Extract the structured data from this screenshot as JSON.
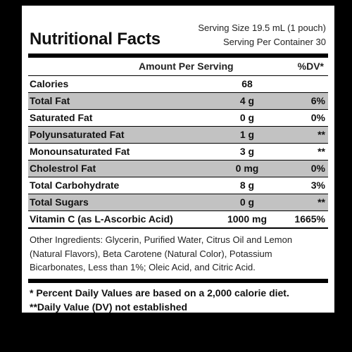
{
  "label": {
    "title": "Nutritional Facts",
    "serving_size": "Serving Size 19.5 mL (1 pouch)",
    "servings_per_container": "Serving Per Container 30"
  },
  "table": {
    "header": {
      "amount": "Amount Per Serving",
      "dv": "%DV*"
    },
    "rows": [
      {
        "name": "Calories",
        "amount": "68",
        "dv": "",
        "shaded": false
      },
      {
        "name": "Total Fat",
        "amount": "4 g",
        "dv": "6%",
        "shaded": true
      },
      {
        "name": "Saturated Fat",
        "amount": "0 g",
        "dv": "0%",
        "shaded": false
      },
      {
        "name": "Polyunsaturated Fat",
        "amount": "1 g",
        "dv": "**",
        "shaded": true
      },
      {
        "name": "Monounsaturated Fat",
        "amount": "3 g",
        "dv": "**",
        "shaded": false
      },
      {
        "name": "Cholestrol Fat",
        "amount": "0 mg",
        "dv": "0%",
        "shaded": true
      },
      {
        "name": "Total Carbohydrate",
        "amount": "8 g",
        "dv": "3%",
        "shaded": false
      },
      {
        "name": "Total Sugars",
        "amount": "0 g",
        "dv": "**",
        "shaded": true
      },
      {
        "name": "Vitamin C (as L-Ascorbic Acid)",
        "amount": "1000 mg",
        "dv": "1665%",
        "shaded": false
      }
    ]
  },
  "ingredients": "Other Ingredients: Glycerin, Purified Water, Citrus Oil and Lemon (Natural Flavors), Beta Carotene (Natural Color), Potassium Bicarbonates, Less than 1%; Oleic Acid, and Citric Acid.",
  "footnotes": {
    "daily_values": "* Percent Daily Values are based on a 2,000 calorie diet.",
    "not_established": "**Daily Value (DV) not established"
  },
  "colors": {
    "background": "#000000",
    "panel": "#ffffff",
    "shaded_row": "#c2c2c2"
  }
}
